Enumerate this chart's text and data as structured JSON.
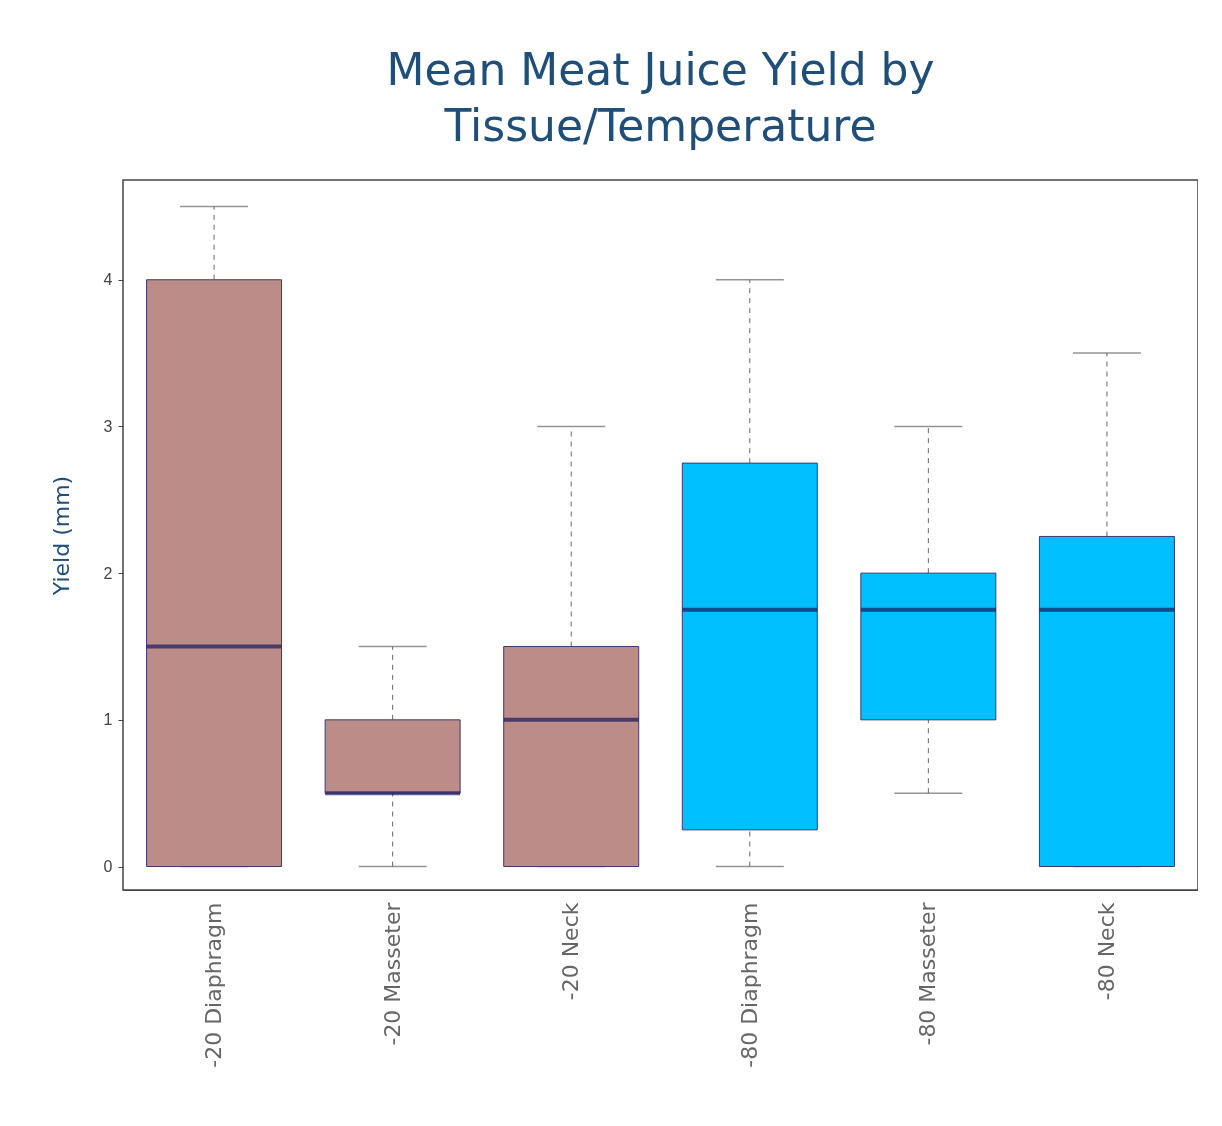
{
  "chart_data": {
    "type": "box",
    "title": "Mean Meat Juice Yield by\nTissue/Temperature",
    "ylabel": "Yield (mm)",
    "categories": [
      "-20 Diaphragm",
      "-20 Masseter",
      "-20 Neck",
      "-80 Diaphragm",
      "-80 Masseter",
      "-80 Neck"
    ],
    "boxes": [
      {
        "low": 0,
        "q1": 0,
        "median": 1.5,
        "q3": 4,
        "high": 4.5
      },
      {
        "low": 0,
        "q1": 0.5,
        "median": 0.5,
        "q3": 1,
        "high": 1.5
      },
      {
        "low": 0,
        "q1": 0,
        "median": 1,
        "q3": 1.5,
        "high": 3
      },
      {
        "low": 0,
        "q1": 0.25,
        "median": 1.75,
        "q3": 2.75,
        "high": 4
      },
      {
        "low": 0.5,
        "q1": 1,
        "median": 1.75,
        "q3": 2,
        "high": 3
      },
      {
        "low": 0,
        "q1": 0,
        "median": 1.75,
        "q3": 2.25,
        "high": 3.5
      }
    ],
    "colors": [
      "#bb8c88",
      "#bb8c88",
      "#bb8c88",
      "#00bfff",
      "#00bfff",
      "#00bfff"
    ],
    "ylim": [
      -0.16,
      4.68
    ],
    "yticks": [
      0,
      1,
      2,
      3,
      4
    ],
    "grid": false
  }
}
